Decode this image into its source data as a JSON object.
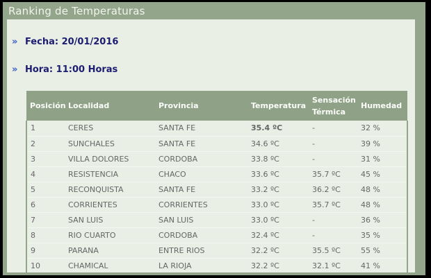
{
  "window": {
    "title": "Ranking de Temperaturas"
  },
  "filters": {
    "bullet": "»",
    "fecha_label": "Fecha:",
    "fecha_value": "20/01/2016",
    "fecha_text": "Fecha: 20/01/2016",
    "hora_label": "Hora:",
    "hora_value": "11:00 Horas",
    "hora_text": "Hora: 11:00 Horas"
  },
  "table": {
    "columns": [
      "Posición",
      "Localidad",
      "Provincia",
      "Temperatura",
      "Sensación Térmica",
      "Humedad"
    ],
    "rows": [
      {
        "pos": "1",
        "loc": "CERES",
        "prov": "SANTA FE",
        "temp": "35.4 ºC",
        "sens": "-",
        "hum": "32 %"
      },
      {
        "pos": "2",
        "loc": "SUNCHALES",
        "prov": "SANTA FE",
        "temp": "34.6 ºC",
        "sens": "-",
        "hum": "39 %"
      },
      {
        "pos": "3",
        "loc": "VILLA DOLORES",
        "prov": "CORDOBA",
        "temp": "33.8 ºC",
        "sens": "-",
        "hum": "31 %"
      },
      {
        "pos": "4",
        "loc": "RESISTENCIA",
        "prov": "CHACO",
        "temp": "33.6 ºC",
        "sens": "35.7 ºC",
        "hum": "45 %"
      },
      {
        "pos": "5",
        "loc": "RECONQUISTA",
        "prov": "SANTA FE",
        "temp": "33.2 ºC",
        "sens": "36.2 ºC",
        "hum": "48 %"
      },
      {
        "pos": "6",
        "loc": "CORRIENTES",
        "prov": "CORRIENTES",
        "temp": "33.0 ºC",
        "sens": "35.7 ºC",
        "hum": "48 %"
      },
      {
        "pos": "7",
        "loc": "SAN LUIS",
        "prov": "SAN LUIS",
        "temp": "33.0 ºC",
        "sens": "-",
        "hum": "36 %"
      },
      {
        "pos": "8",
        "loc": "RIO CUARTO",
        "prov": "CORDOBA",
        "temp": "32.4 ºC",
        "sens": "-",
        "hum": "35 %"
      },
      {
        "pos": "9",
        "loc": "PARANA",
        "prov": "ENTRE RIOS",
        "temp": "32.2 ºC",
        "sens": "35.5 ºC",
        "hum": "55 %"
      },
      {
        "pos": "10",
        "loc": "CHAMICAL",
        "prov": "LA RIOJA",
        "temp": "32.2 ºC",
        "sens": "32.1 ºC",
        "hum": "41 %"
      }
    ]
  },
  "colors": {
    "frame_black": "#000000",
    "sage_green": "#93A58A",
    "table_header_bg": "#8FA287",
    "panel_bg": "#E9EFE5",
    "title_text": "#F2F5ED",
    "filter_text_navy": "#1C1C70",
    "bullet_blue": "#3A5FC8",
    "row_text_gray": "#666666",
    "highlight_red": "#CC2222"
  }
}
